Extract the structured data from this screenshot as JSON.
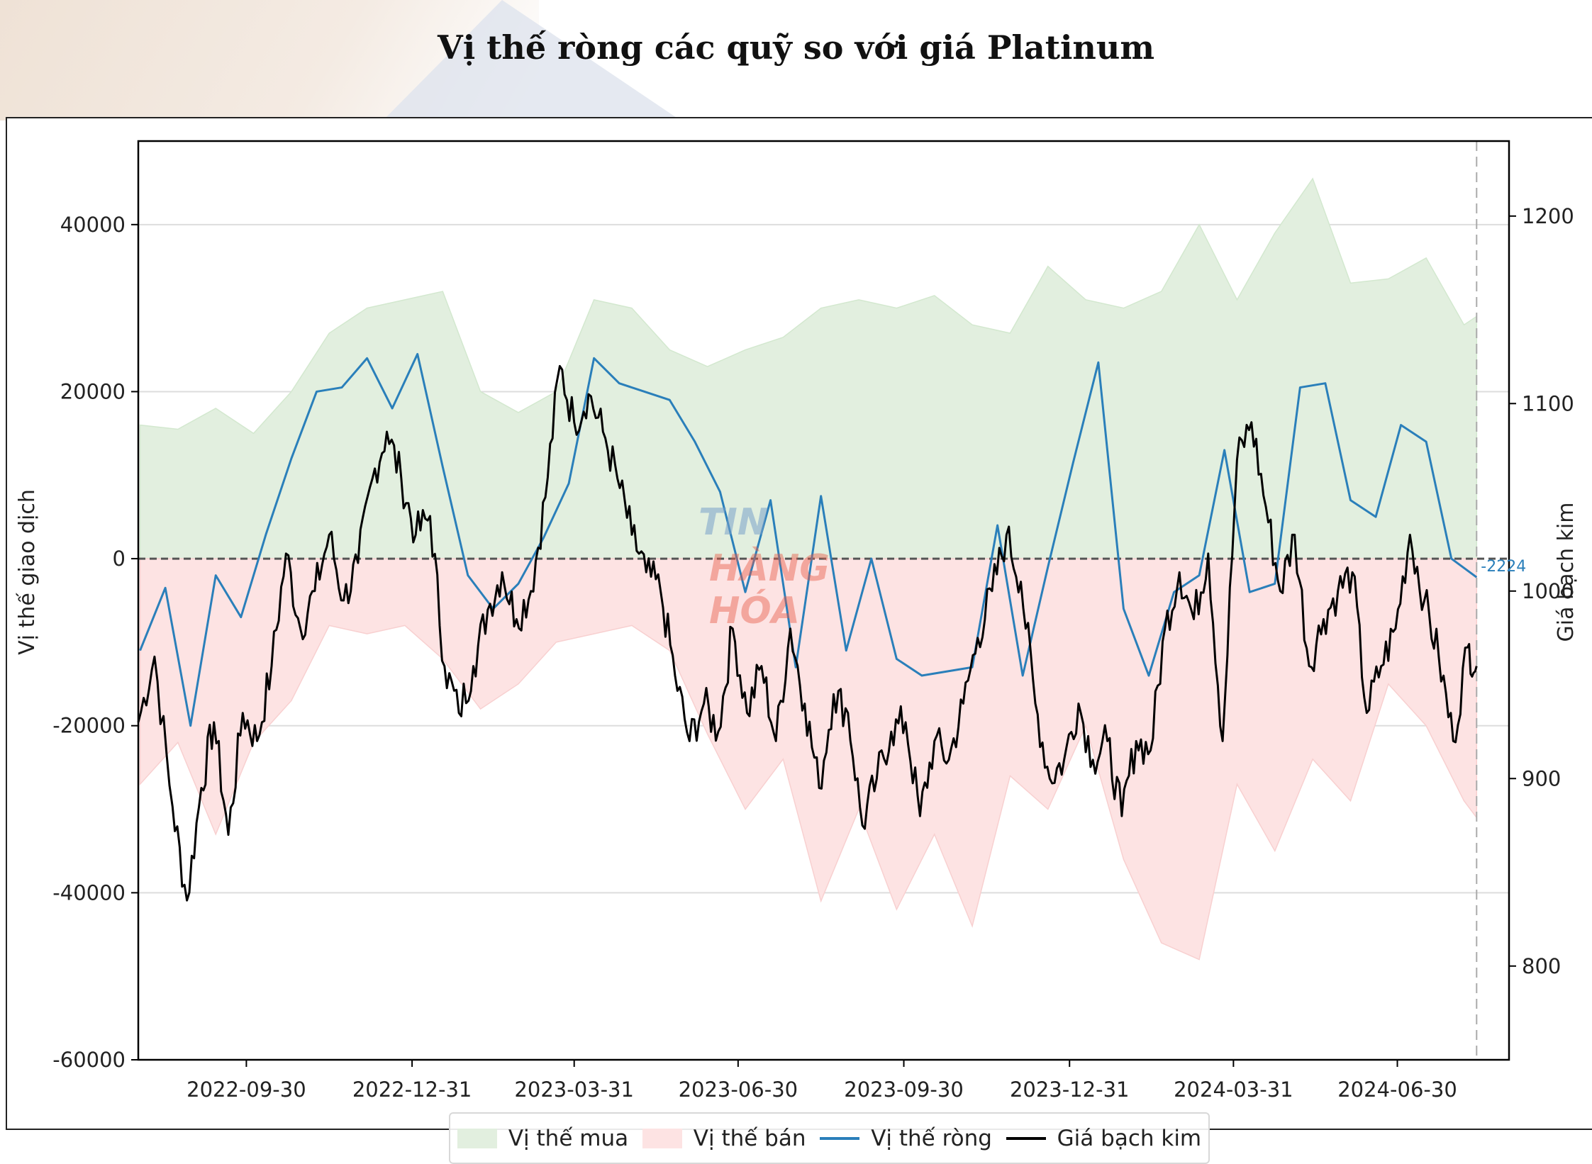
{
  "page": {
    "title": "Vị thế ròng các quỹ so với giá Platinum"
  },
  "watermark": {
    "line1": "TIN",
    "line2": "HÀNG HÓA"
  },
  "colors": {
    "long_fill": "#e2efdf",
    "long_edge": "#d3e8cf",
    "short_fill": "#fde3e3",
    "short_edge": "#f8d0d0",
    "net_line": "#2a7fba",
    "price_line": "#000000",
    "grid": "#dddddd",
    "zero_line": "#555555"
  },
  "chart_data": {
    "type": "area+line dual-axis",
    "title": "Vị thế ròng các quỹ so với giá Platinum",
    "xlabel": "",
    "ylabel": "Vị thế giao dịch",
    "ylabel_right": "Giá bạch kim",
    "ylim": [
      -60000,
      50000
    ],
    "ylim_right": [
      750,
      1240
    ],
    "xlim": [
      "2022-08-01",
      "2024-08-31"
    ],
    "x_ticks": [
      "2022-09-30",
      "2022-12-31",
      "2023-03-31",
      "2023-06-30",
      "2023-09-30",
      "2023-12-31",
      "2024-03-31",
      "2024-06-30"
    ],
    "y_ticks": [
      40000,
      20000,
      0,
      -20000,
      -40000,
      -60000
    ],
    "y_ticks_right": [
      1200,
      1100,
      1000,
      900,
      800
    ],
    "last_date": "2024-08-13",
    "last_value_label": "-2224",
    "grid": "horizontal",
    "legend_position": "bottom-center",
    "series": [
      {
        "name": "Vị thế mua",
        "style": "area",
        "x": [
          "2022-08-02",
          "2022-08-23",
          "2022-09-13",
          "2022-10-04",
          "2022-10-25",
          "2022-11-15",
          "2022-12-06",
          "2022-12-27",
          "2023-01-17",
          "2023-02-07",
          "2023-02-28",
          "2023-03-21",
          "2023-04-11",
          "2023-05-02",
          "2023-05-23",
          "2023-06-13",
          "2023-07-04",
          "2023-07-25",
          "2023-08-15",
          "2023-09-05",
          "2023-09-26",
          "2023-10-17",
          "2023-11-07",
          "2023-11-28",
          "2023-12-19",
          "2024-01-09",
          "2024-01-30",
          "2024-02-20",
          "2024-03-12",
          "2024-04-02",
          "2024-04-23",
          "2024-05-14",
          "2024-06-04",
          "2024-06-25",
          "2024-07-16",
          "2024-08-06",
          "2024-08-13"
        ],
        "values": [
          16000,
          15500,
          18000,
          15000,
          20000,
          27000,
          30000,
          31000,
          32000,
          20000,
          17500,
          20000,
          31000,
          30000,
          25000,
          23000,
          25000,
          26500,
          30000,
          31000,
          30000,
          31500,
          28000,
          27000,
          35000,
          31000,
          30000,
          32000,
          40000,
          31000,
          39000,
          45500,
          33000,
          33500,
          36000,
          28000,
          29000
        ]
      },
      {
        "name": "Vị thế bán",
        "style": "area",
        "x": [
          "2022-08-02",
          "2022-08-23",
          "2022-09-13",
          "2022-10-04",
          "2022-10-25",
          "2022-11-15",
          "2022-12-06",
          "2022-12-27",
          "2023-01-17",
          "2023-02-07",
          "2023-02-28",
          "2023-03-21",
          "2023-04-11",
          "2023-05-02",
          "2023-05-23",
          "2023-06-13",
          "2023-07-04",
          "2023-07-25",
          "2023-08-15",
          "2023-09-05",
          "2023-09-26",
          "2023-10-17",
          "2023-11-07",
          "2023-11-28",
          "2023-12-19",
          "2024-01-09",
          "2024-01-30",
          "2024-02-20",
          "2024-03-12",
          "2024-04-02",
          "2024-04-23",
          "2024-05-14",
          "2024-06-04",
          "2024-06-25",
          "2024-07-16",
          "2024-08-06",
          "2024-08-13"
        ],
        "values": [
          -27000,
          -22000,
          -33000,
          -22000,
          -17000,
          -8000,
          -9000,
          -8000,
          -12000,
          -18000,
          -15000,
          -10000,
          -9000,
          -8000,
          -11000,
          -21000,
          -30000,
          -24000,
          -41000,
          -30000,
          -42000,
          -33000,
          -44000,
          -26000,
          -30000,
          -20000,
          -36000,
          -46000,
          -48000,
          -27000,
          -35000,
          -24000,
          -29000,
          -15000,
          -20000,
          -29000,
          -31000
        ]
      },
      {
        "name": "Vị thế ròng",
        "style": "line",
        "x": [
          "2022-08-02",
          "2022-08-16",
          "2022-08-30",
          "2022-09-13",
          "2022-09-27",
          "2022-10-11",
          "2022-10-25",
          "2022-11-08",
          "2022-11-22",
          "2022-12-06",
          "2022-12-20",
          "2023-01-03",
          "2023-01-17",
          "2023-01-31",
          "2023-02-14",
          "2023-02-28",
          "2023-03-14",
          "2023-03-28",
          "2023-04-11",
          "2023-04-25",
          "2023-05-09",
          "2023-05-23",
          "2023-06-06",
          "2023-06-20",
          "2023-07-04",
          "2023-07-18",
          "2023-08-01",
          "2023-08-15",
          "2023-08-29",
          "2023-09-12",
          "2023-09-26",
          "2023-10-10",
          "2023-10-24",
          "2023-11-07",
          "2023-11-21",
          "2023-12-05",
          "2023-12-19",
          "2024-01-02",
          "2024-01-16",
          "2024-01-30",
          "2024-02-13",
          "2024-02-27",
          "2024-03-12",
          "2024-03-26",
          "2024-04-09",
          "2024-04-23",
          "2024-05-07",
          "2024-05-21",
          "2024-06-04",
          "2024-06-18",
          "2024-07-02",
          "2024-07-16",
          "2024-07-30",
          "2024-08-13"
        ],
        "values": [
          -11000,
          -3500,
          -20000,
          -2000,
          -7000,
          3000,
          12000,
          20000,
          20500,
          24000,
          18000,
          24500,
          11000,
          -2000,
          -6000,
          -3000,
          2500,
          9000,
          24000,
          21000,
          20000,
          19000,
          14000,
          8000,
          -4000,
          7000,
          -13000,
          7500,
          -11000,
          0,
          -12000,
          -14000,
          -13500,
          -13000,
          4000,
          -14000,
          -1000,
          11500,
          23500,
          -6000,
          -14000,
          -4000,
          -2000,
          13000,
          -4000,
          -3000,
          20500,
          21000,
          7000,
          5000,
          16000,
          14000,
          0,
          -2224
        ]
      },
      {
        "name": "Giá bạch kim",
        "style": "line",
        "axis": "right",
        "x": [
          "2022-08-01",
          "2022-08-10",
          "2022-08-20",
          "2022-08-28",
          "2022-09-05",
          "2022-09-12",
          "2022-09-20",
          "2022-09-28",
          "2022-10-06",
          "2022-10-14",
          "2022-10-22",
          "2022-10-30",
          "2022-11-07",
          "2022-11-15",
          "2022-11-23",
          "2022-12-01",
          "2022-12-09",
          "2022-12-17",
          "2022-12-25",
          "2023-01-02",
          "2023-01-10",
          "2023-01-18",
          "2023-01-26",
          "2023-02-03",
          "2023-02-11",
          "2023-02-19",
          "2023-02-27",
          "2023-03-07",
          "2023-03-15",
          "2023-03-23",
          "2023-03-31",
          "2023-04-08",
          "2023-04-16",
          "2023-04-24",
          "2023-05-02",
          "2023-05-10",
          "2023-05-18",
          "2023-05-26",
          "2023-06-03",
          "2023-06-11",
          "2023-06-19",
          "2023-06-27",
          "2023-07-05",
          "2023-07-13",
          "2023-07-21",
          "2023-07-29",
          "2023-08-06",
          "2023-08-14",
          "2023-08-22",
          "2023-08-30",
          "2023-09-07",
          "2023-09-15",
          "2023-09-23",
          "2023-10-01",
          "2023-10-09",
          "2023-10-17",
          "2023-10-25",
          "2023-11-02",
          "2023-11-10",
          "2023-11-18",
          "2023-11-26",
          "2023-12-04",
          "2023-12-12",
          "2023-12-20",
          "2023-12-28",
          "2024-01-05",
          "2024-01-13",
          "2024-01-21",
          "2024-01-29",
          "2024-02-06",
          "2024-02-14",
          "2024-02-22",
          "2024-03-01",
          "2024-03-09",
          "2024-03-17",
          "2024-03-25",
          "2024-04-02",
          "2024-04-10",
          "2024-04-18",
          "2024-04-26",
          "2024-05-04",
          "2024-05-12",
          "2024-05-20",
          "2024-05-28",
          "2024-06-05",
          "2024-06-13",
          "2024-06-21",
          "2024-06-29",
          "2024-07-07",
          "2024-07-15",
          "2024-07-23",
          "2024-07-31",
          "2024-08-08",
          "2024-08-13"
        ],
        "values": [
          930,
          965,
          885,
          835,
          895,
          930,
          870,
          935,
          920,
          960,
          1020,
          980,
          1000,
          1030,
          995,
          1015,
          1060,
          1085,
          1060,
          1030,
          1040,
          960,
          935,
          960,
          990,
          1010,
          985,
          1000,
          1050,
          1120,
          1090,
          1105,
          1085,
          1060,
          1030,
          1010,
          1000,
          955,
          920,
          940,
          925,
          980,
          935,
          960,
          920,
          980,
          940,
          895,
          945,
          935,
          875,
          900,
          925,
          930,
          880,
          920,
          910,
          940,
          975,
          1000,
          1030,
          1005,
          940,
          900,
          910,
          940,
          910,
          920,
          880,
          920,
          915,
          980,
          1010,
          985,
          1020,
          920,
          1070,
          1090,
          1045,
          1000,
          1030,
          960,
          985,
          1000,
          1010,
          935,
          960,
          980,
          1030,
          995,
          965,
          920,
          970,
          960
        ]
      }
    ]
  }
}
